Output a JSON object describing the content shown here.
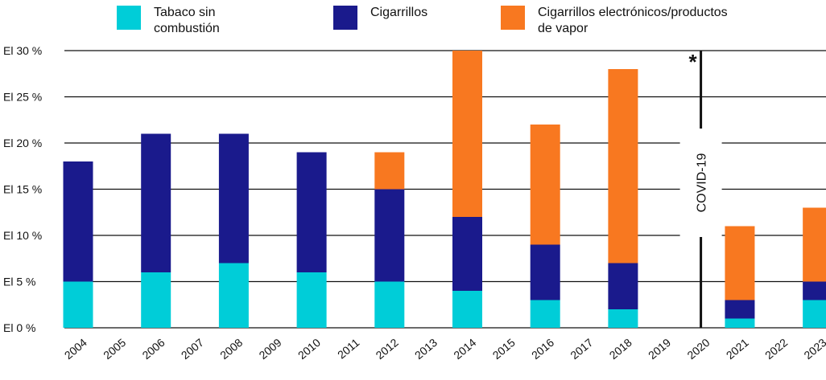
{
  "chart_data": {
    "type": "bar",
    "stacked": true,
    "categories": [
      "2004",
      "2005",
      "2006",
      "2007",
      "2008",
      "2009",
      "2010",
      "2011",
      "2012",
      "2013",
      "2014",
      "2015",
      "2016",
      "2017",
      "2018",
      "2019",
      "2020",
      "2021",
      "2022",
      "2023"
    ],
    "series": [
      {
        "name": "Tabaco sin combustión",
        "color": "#00CDD8",
        "values": [
          5,
          null,
          6,
          null,
          7,
          null,
          6,
          null,
          5,
          null,
          4,
          null,
          3,
          null,
          2,
          null,
          null,
          1,
          null,
          3
        ]
      },
      {
        "name": "Cigarrillos",
        "color": "#1A1A8C",
        "values": [
          13,
          null,
          15,
          null,
          14,
          null,
          13,
          null,
          10,
          null,
          8,
          null,
          6,
          null,
          5,
          null,
          null,
          2,
          null,
          2
        ]
      },
      {
        "name": "Cigarrillos electrónicos/productos de vapor",
        "color": "#F87820",
        "values": [
          0,
          null,
          0,
          null,
          0,
          null,
          0,
          null,
          4,
          null,
          18,
          null,
          13,
          null,
          21,
          null,
          null,
          8,
          null,
          8
        ]
      }
    ],
    "ylim": [
      0,
      30
    ],
    "yticks": [
      0,
      5,
      10,
      15,
      20,
      25,
      30
    ],
    "ytick_labels": [
      "El 0 %",
      "El 5 %",
      "El 10 %",
      "El 15 %",
      "El 20 %",
      "El 25 %",
      "El 30 %"
    ],
    "grid": true,
    "legend_position": "top",
    "annotations": [
      {
        "text": "COVID-19",
        "category": "2020"
      },
      {
        "text": "*",
        "category": "2020"
      }
    ],
    "title": "",
    "xlabel": "",
    "ylabel": ""
  },
  "legend": [
    {
      "label_line1": "Tabaco sin",
      "label_line2": "combustión",
      "color": "#00CDD8"
    },
    {
      "label_line1": "Cigarrillos",
      "label_line2": "",
      "color": "#1A1A8C"
    },
    {
      "label_line1": "Cigarrillos electrónicos/productos",
      "label_line2": "de vapor",
      "color": "#F87820"
    }
  ]
}
